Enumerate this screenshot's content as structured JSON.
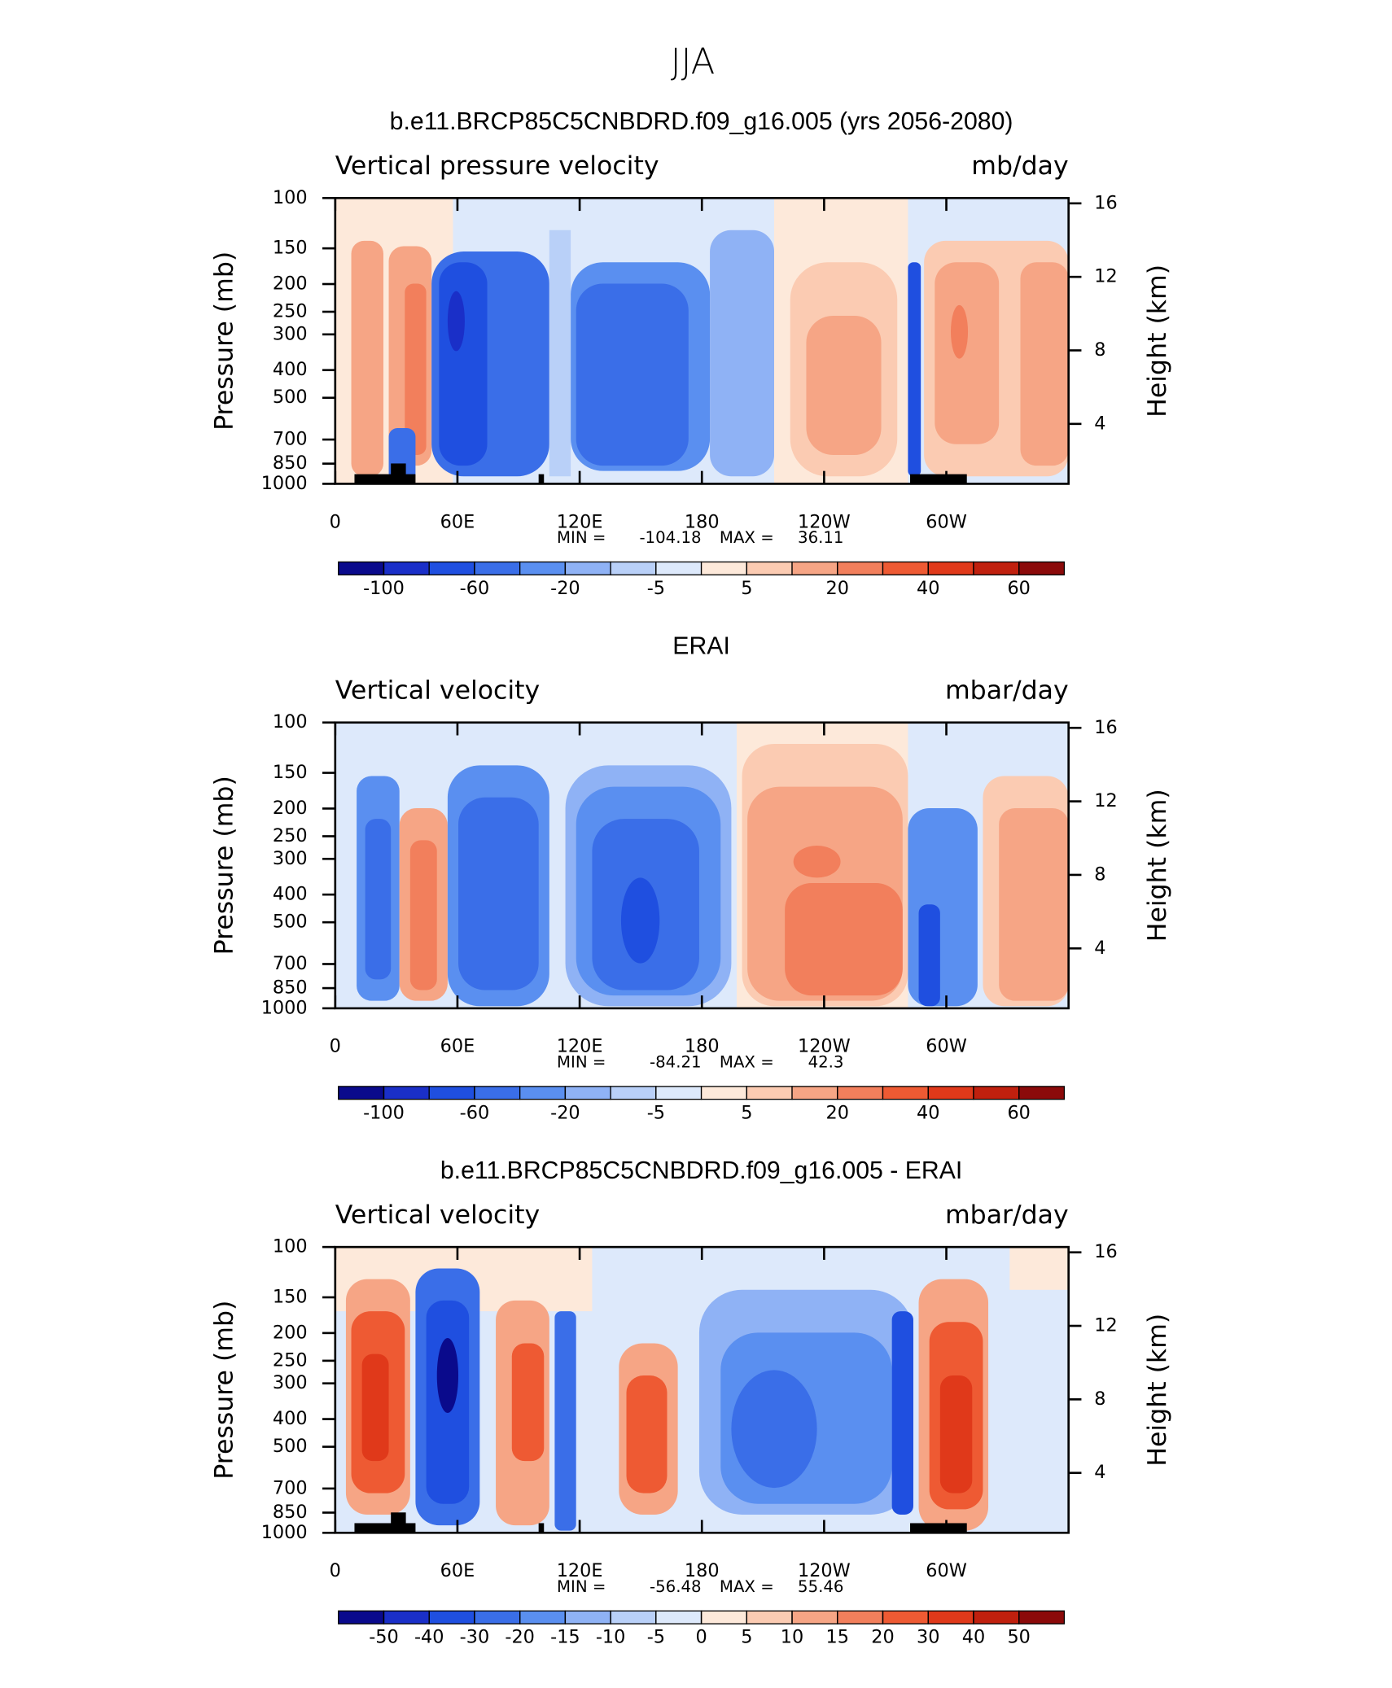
{
  "suptitle": "JJA",
  "chart_data": [
    {
      "type": "contour",
      "title": "b.e11.BRCP85C5CNBDRD.f09_g16.005 (yrs 2056-2080)",
      "left_label": "Vertical pressure velocity",
      "units": "mb/day",
      "ylabel": "Pressure (mb)",
      "y2label": "Height (km)",
      "ylog": true,
      "xlim": [
        0,
        360
      ],
      "xticks": [
        0,
        {
          "value": 60,
          "label": "60E"
        },
        {
          "value": 120,
          "label": "120E"
        },
        180,
        {
          "value": 240,
          "label": "120W"
        },
        {
          "value": 300,
          "label": "60W"
        }
      ],
      "ylim": [
        1000,
        100
      ],
      "yticks": [
        100,
        150,
        200,
        250,
        300,
        400,
        500,
        700,
        850,
        1000
      ],
      "y2lim": [
        0.74,
        16.29
      ],
      "y2ticks": [
        4,
        8,
        12,
        16
      ],
      "min_label": "MIN =",
      "min": -104.18,
      "max_label": "MAX =",
      "max": 36.11,
      "colorbar": {
        "colors": [
          "#0a0a8c",
          "#1a2fc8",
          "#1f4fe0",
          "#3a6ee8",
          "#5a8ff0",
          "#8fb2f5",
          "#b9d0f8",
          "#dde9fb",
          "#fde9da",
          "#fbcbb2",
          "#f6a585",
          "#f27f5c",
          "#ee5a33",
          "#e0391a",
          "#c0200e",
          "#8b0a0a"
        ],
        "levels": [
          -100,
          null,
          -60,
          null,
          -20,
          null,
          -5,
          null,
          5,
          null,
          20,
          null,
          40,
          null,
          60
        ]
      }
    },
    {
      "type": "contour",
      "title": "ERAI",
      "left_label": "Vertical velocity",
      "units": "mbar/day",
      "ylabel": "Pressure (mb)",
      "y2label": "Height (km)",
      "ylog": true,
      "xlim": [
        0,
        360
      ],
      "xticks": [
        0,
        {
          "value": 60,
          "label": "60E"
        },
        {
          "value": 120,
          "label": "120E"
        },
        180,
        {
          "value": 240,
          "label": "120W"
        },
        {
          "value": 300,
          "label": "60W"
        }
      ],
      "ylim": [
        1000,
        100
      ],
      "yticks": [
        100,
        150,
        200,
        250,
        300,
        400,
        500,
        700,
        850,
        1000
      ],
      "y2lim": [
        0.74,
        16.29
      ],
      "y2ticks": [
        4,
        8,
        12,
        16
      ],
      "min_label": "MIN =",
      "min": -84.21,
      "max_label": "MAX =",
      "max": 42.3,
      "colorbar": {
        "colors": [
          "#0a0a8c",
          "#1a2fc8",
          "#1f4fe0",
          "#3a6ee8",
          "#5a8ff0",
          "#8fb2f5",
          "#b9d0f8",
          "#dde9fb",
          "#fde9da",
          "#fbcbb2",
          "#f6a585",
          "#f27f5c",
          "#ee5a33",
          "#e0391a",
          "#c0200e",
          "#8b0a0a"
        ],
        "levels": [
          -100,
          null,
          -60,
          null,
          -20,
          null,
          -5,
          null,
          5,
          null,
          20,
          null,
          40,
          null,
          60
        ]
      }
    },
    {
      "type": "contour",
      "title": "b.e11.BRCP85C5CNBDRD.f09_g16.005 - ERAI",
      "left_label": "Vertical velocity",
      "units": "mbar/day",
      "ylabel": "Pressure (mb)",
      "y2label": "Height (km)",
      "ylog": true,
      "xlim": [
        0,
        360
      ],
      "xticks": [
        0,
        {
          "value": 60,
          "label": "60E"
        },
        {
          "value": 120,
          "label": "120E"
        },
        180,
        {
          "value": 240,
          "label": "120W"
        },
        {
          "value": 300,
          "label": "60W"
        }
      ],
      "ylim": [
        1000,
        100
      ],
      "yticks": [
        100,
        150,
        200,
        250,
        300,
        400,
        500,
        700,
        850,
        1000
      ],
      "y2lim": [
        0.74,
        16.29
      ],
      "y2ticks": [
        4,
        8,
        12,
        16
      ],
      "min_label": "MIN =",
      "min": -56.48,
      "max_label": "MAX =",
      "max": 55.46,
      "colorbar": {
        "colors": [
          "#0a0a8c",
          "#1a2fc8",
          "#1f4fe0",
          "#3a6ee8",
          "#5a8ff0",
          "#8fb2f5",
          "#b9d0f8",
          "#dde9fb",
          "#fde9da",
          "#fbcbb2",
          "#f6a585",
          "#f27f5c",
          "#ee5a33",
          "#e0391a",
          "#c0200e",
          "#8b0a0a"
        ],
        "levels": [
          -50,
          -40,
          -30,
          -20,
          -15,
          -10,
          -5,
          0,
          5,
          10,
          15,
          20,
          30,
          40,
          50
        ]
      }
    }
  ]
}
